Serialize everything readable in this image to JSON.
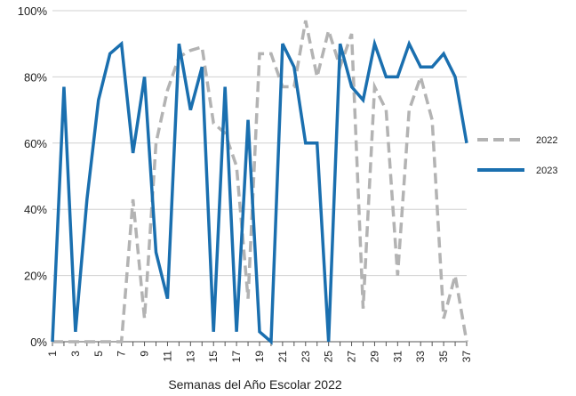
{
  "chart_data": {
    "type": "line",
    "title": "",
    "xlabel": "Semanas del Año Escolar 2022",
    "ylabel": "",
    "x": [
      1,
      2,
      3,
      4,
      5,
      6,
      7,
      8,
      9,
      10,
      11,
      12,
      13,
      14,
      15,
      16,
      17,
      18,
      19,
      20,
      21,
      22,
      23,
      24,
      25,
      26,
      27,
      28,
      29,
      30,
      31,
      32,
      33,
      34,
      35,
      36,
      37
    ],
    "x_tick_labels": [
      "1",
      "3",
      "5",
      "7",
      "9",
      "11",
      "13",
      "15",
      "17",
      "19",
      "21",
      "23",
      "25",
      "27",
      "29",
      "31",
      "33",
      "35",
      "37"
    ],
    "x_tick_values": [
      1,
      3,
      5,
      7,
      9,
      11,
      13,
      15,
      17,
      19,
      21,
      23,
      25,
      27,
      29,
      31,
      33,
      35,
      37
    ],
    "y_tick_labels": [
      "0%",
      "20%",
      "40%",
      "60%",
      "80%",
      "100%"
    ],
    "y_tick_values": [
      0,
      20,
      40,
      60,
      80,
      100
    ],
    "ylim": [
      0,
      100
    ],
    "xlim": [
      1,
      37
    ],
    "grid": true,
    "legend_position": "right",
    "series": [
      {
        "name": "2022",
        "color": "#b3b3b3",
        "style": "dashed",
        "values": [
          0,
          0,
          0,
          0,
          0,
          0,
          0,
          43,
          7,
          60,
          76,
          86,
          88,
          89,
          66,
          63,
          53,
          13,
          87,
          87,
          77,
          77,
          97,
          80,
          94,
          83,
          93,
          10,
          77,
          70,
          20,
          70,
          80,
          67,
          7,
          20,
          0
        ]
      },
      {
        "name": "2023",
        "color": "#1a6faf",
        "style": "solid",
        "values": [
          0,
          77,
          3,
          43,
          73,
          87,
          90,
          57,
          80,
          27,
          13,
          90,
          70,
          83,
          3,
          77,
          3,
          67,
          3,
          0,
          90,
          83,
          60,
          60,
          0,
          90,
          77,
          73,
          90,
          80,
          80,
          90,
          83,
          83,
          87,
          80,
          60
        ]
      }
    ]
  }
}
